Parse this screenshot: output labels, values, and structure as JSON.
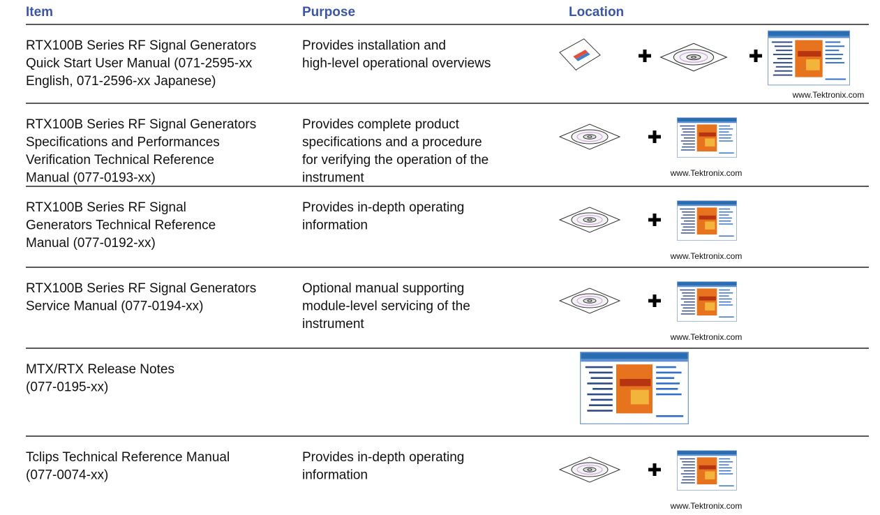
{
  "header": {
    "columns": [
      "Item",
      "Purpose",
      "Location"
    ]
  },
  "table": {
    "rows": [
      {
        "item": [
          "RTX100B Series RF Signal Generators",
          "Quick Start User Manual (071-2595-xx",
          "English, 071-2596-xx Japanese)"
        ],
        "purpose": [
          "Provides installation and",
          "high-level operational overviews"
        ],
        "caption": "www.Tektronix.com"
      },
      {
        "item": [
          "RTX100B Series RF Signal Generators",
          "Specifications and Performances",
          "Verification Technical Reference",
          "Manual (077-0193-xx)"
        ],
        "purpose": [
          "Provides complete product",
          "specifications and a procedure",
          "for verifying the operation of the",
          "instrument"
        ],
        "caption": "www.Tektronix.com"
      },
      {
        "item": [
          "RTX100B Series RF Signal",
          "Generators Technical Reference",
          "Manual (077-0192-xx)"
        ],
        "purpose": [
          "Provides in-depth operating",
          "information"
        ],
        "caption": "www.Tektronix.com"
      },
      {
        "item": [
          "RTX100B Series RF Signal Generators",
          "Service Manual (077-0194-xx)"
        ],
        "purpose": [
          "Optional manual supporting",
          "module-level servicing of the",
          "instrument"
        ],
        "caption": "www.Tektronix.com"
      },
      {
        "item": [
          "MTX/RTX Release Notes",
          "(077-0195-xx)"
        ],
        "purpose": []
      },
      {
        "item": [
          "Tclips Technical Reference Manual",
          "(077-0074-xx)"
        ],
        "purpose": [
          "Provides in-depth operating",
          "information"
        ],
        "caption": "www.Tektronix.com"
      }
    ]
  }
}
